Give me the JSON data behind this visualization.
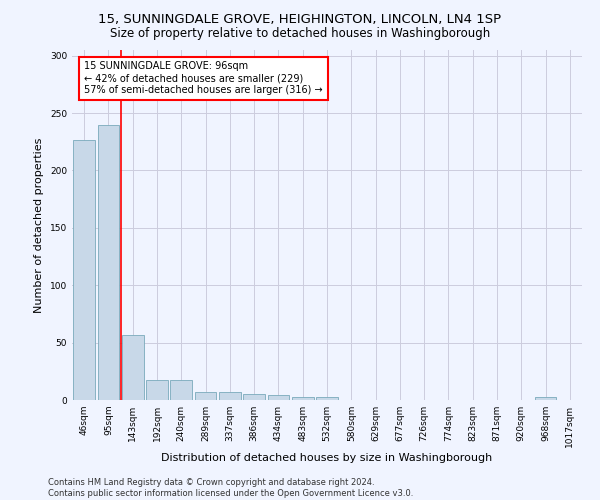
{
  "title": "15, SUNNINGDALE GROVE, HEIGHINGTON, LINCOLN, LN4 1SP",
  "subtitle": "Size of property relative to detached houses in Washingborough",
  "xlabel": "Distribution of detached houses by size in Washingborough",
  "ylabel": "Number of detached properties",
  "bar_color": "#c8d8e8",
  "bar_edge_color": "#7aaabb",
  "background_color": "#f0f4ff",
  "grid_color": "#ccccdd",
  "categories": [
    "46sqm",
    "95sqm",
    "143sqm",
    "192sqm",
    "240sqm",
    "289sqm",
    "337sqm",
    "386sqm",
    "434sqm",
    "483sqm",
    "532sqm",
    "580sqm",
    "629sqm",
    "677sqm",
    "726sqm",
    "774sqm",
    "823sqm",
    "871sqm",
    "920sqm",
    "968sqm",
    "1017sqm"
  ],
  "values": [
    227,
    240,
    57,
    17,
    17,
    7,
    7,
    5,
    4,
    3,
    3,
    0,
    0,
    0,
    0,
    0,
    0,
    0,
    0,
    3,
    0
  ],
  "property_line_x": 1.5,
  "annotation_text": "15 SUNNINGDALE GROVE: 96sqm\n← 42% of detached houses are smaller (229)\n57% of semi-detached houses are larger (316) →",
  "annotation_box_color": "white",
  "annotation_box_edge_color": "red",
  "property_line_color": "red",
  "ylim": [
    0,
    305
  ],
  "footer_text": "Contains HM Land Registry data © Crown copyright and database right 2024.\nContains public sector information licensed under the Open Government Licence v3.0.",
  "title_fontsize": 9.5,
  "subtitle_fontsize": 8.5,
  "ylabel_fontsize": 8,
  "xlabel_fontsize": 8,
  "tick_fontsize": 6.5,
  "annotation_fontsize": 7,
  "footer_fontsize": 6
}
